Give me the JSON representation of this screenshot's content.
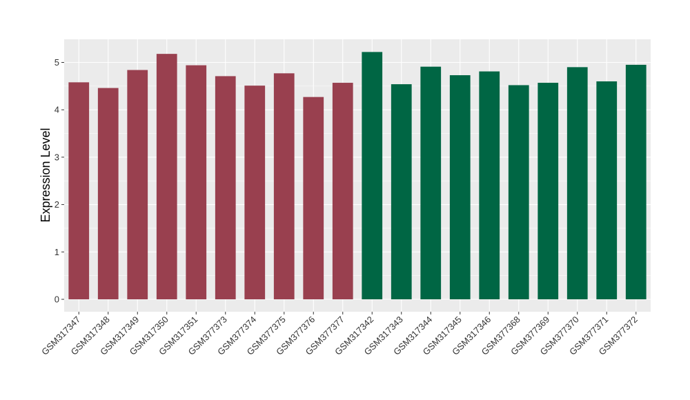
{
  "chart_data": {
    "type": "bar",
    "title": "",
    "xlabel": "",
    "ylabel": "Expression Level",
    "ylim": [
      0,
      5.45
    ],
    "yticks": [
      0,
      1,
      2,
      3,
      4,
      5
    ],
    "grid": true,
    "legend": "none",
    "colors": {
      "panel": "#ebebeb",
      "grid": "#ffffff",
      "group1": "#99404f",
      "group2": "#006644"
    },
    "categories": [
      "GSM317347",
      "GSM317348",
      "GSM317349",
      "GSM317350",
      "GSM317351",
      "GSM377373",
      "GSM377374",
      "GSM377375",
      "GSM377376",
      "GSM377377",
      "GSM317342",
      "GSM317343",
      "GSM317344",
      "GSM317345",
      "GSM317346",
      "GSM377368",
      "GSM377369",
      "GSM377370",
      "GSM377371",
      "GSM377372"
    ],
    "values": [
      4.58,
      4.46,
      4.84,
      5.18,
      4.94,
      4.71,
      4.51,
      4.77,
      4.27,
      4.57,
      5.22,
      4.54,
      4.91,
      4.73,
      4.81,
      4.52,
      4.57,
      4.9,
      4.6,
      4.95
    ],
    "groups": [
      1,
      1,
      1,
      1,
      1,
      1,
      1,
      1,
      1,
      1,
      2,
      2,
      2,
      2,
      2,
      2,
      2,
      2,
      2,
      2
    ]
  }
}
